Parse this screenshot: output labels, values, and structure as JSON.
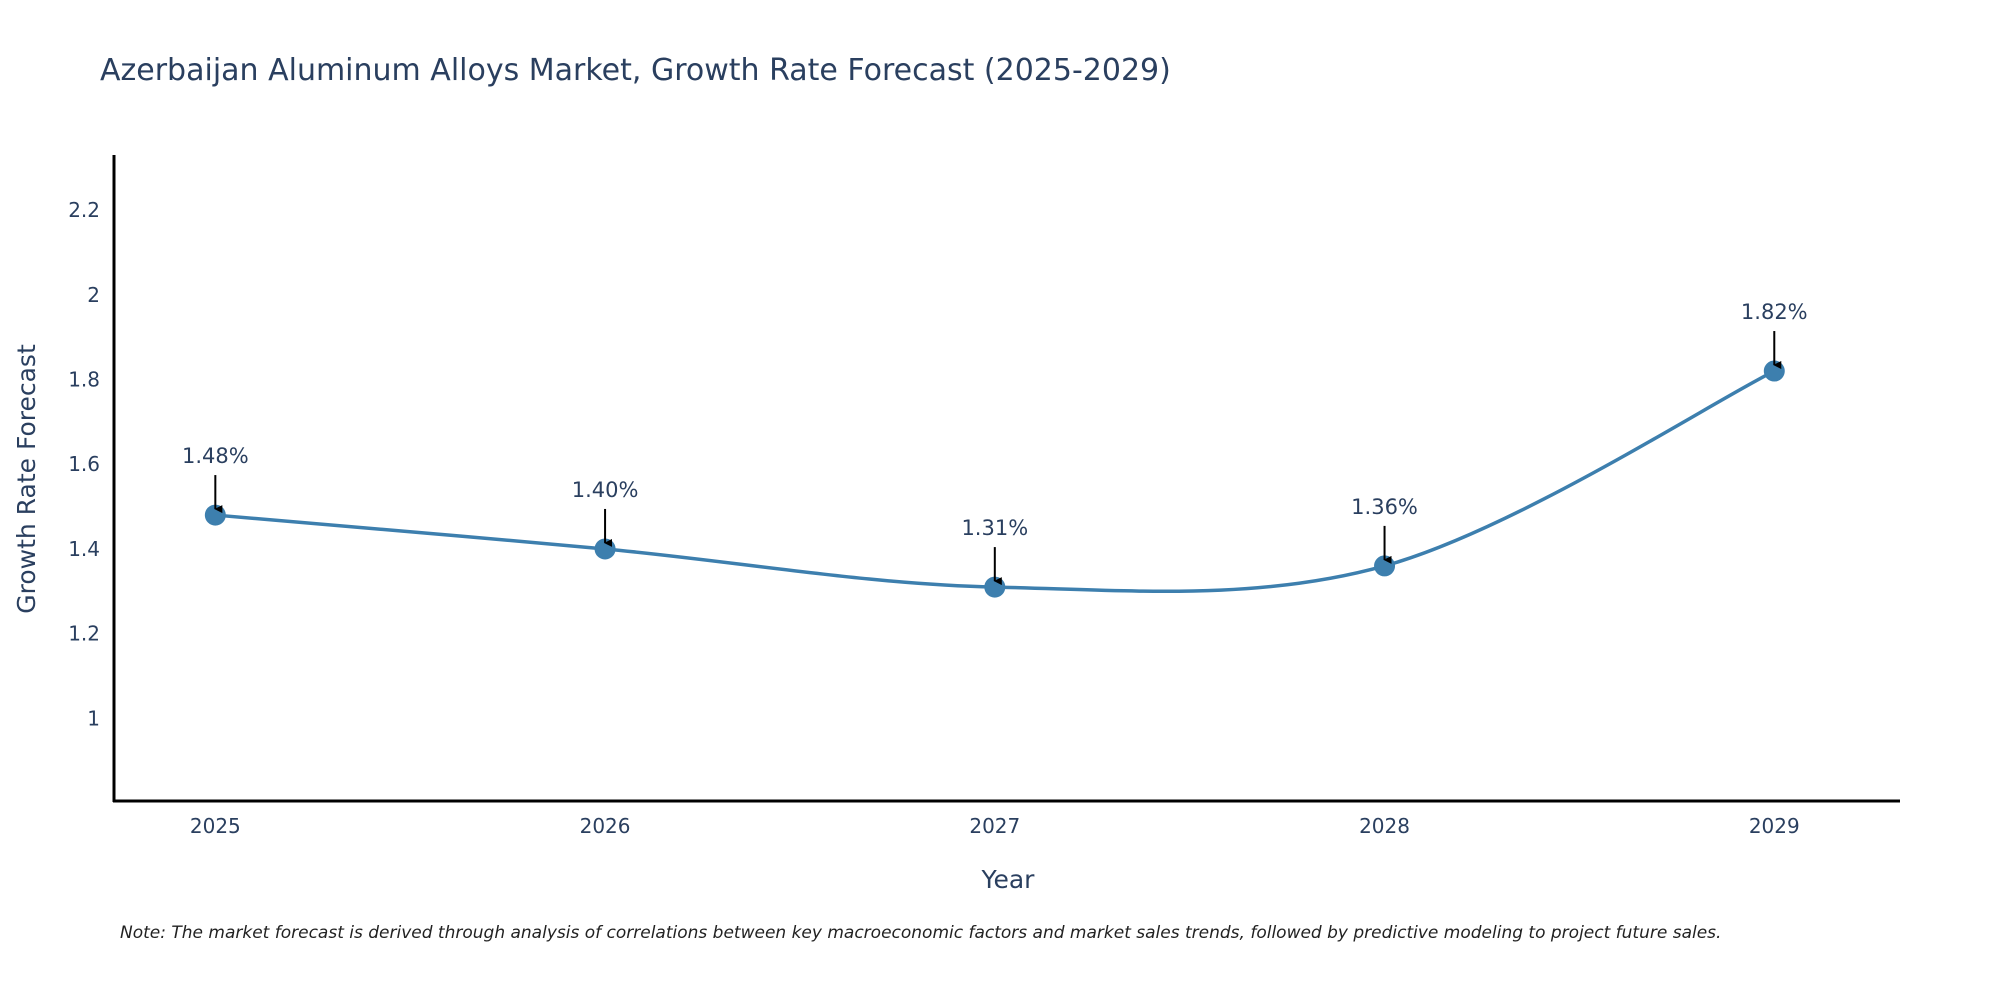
{
  "chart_data": {
    "type": "line",
    "title": "Azerbaijan Aluminum Alloys Market, Growth Rate Forecast (2025-2029)",
    "xlabel": "Year",
    "ylabel": "Growth Rate Forecast",
    "categories": [
      "2025",
      "2026",
      "2027",
      "2028",
      "2029"
    ],
    "series": [
      {
        "name": "Growth Rate Forecast",
        "values": [
          1.48,
          1.4,
          1.31,
          1.36,
          1.82
        ],
        "color": "#3d7fae",
        "line_shape": "spline"
      }
    ],
    "annotations": [
      "1.48%",
      "1.40%",
      "1.31%",
      "1.36%",
      "1.82%"
    ],
    "yticks": [
      1,
      1.2,
      1.4,
      1.6,
      1.8,
      2,
      2.2
    ],
    "ytick_labels": [
      "1",
      "1.2",
      "1.4",
      "1.6",
      "1.8",
      "2",
      "2.2"
    ],
    "ylim": [
      0.805,
      2.33
    ],
    "xlim": [
      2024.74,
      2029.32
    ],
    "grid": false,
    "legend": "none",
    "note": "Note: The market forecast is derived through analysis of correlations between key macroeconomic factors and market sales trends, followed by predictive modeling to project future sales."
  }
}
